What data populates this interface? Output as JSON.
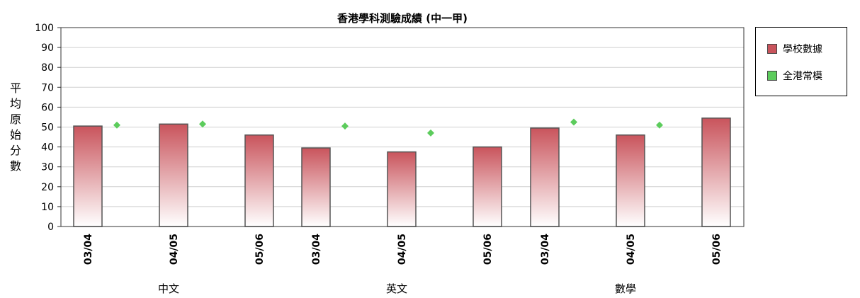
{
  "chart_data": {
    "type": "bar",
    "title": "香港學科測驗成績 (中一甲)",
    "ylabel": "平均原始分數",
    "xlabel": "",
    "ylim": [
      0,
      100
    ],
    "yticks": [
      0,
      10,
      20,
      30,
      40,
      50,
      60,
      70,
      80,
      90,
      100
    ],
    "grid": true,
    "legend_placement": "right",
    "groups": [
      "中文",
      "英文",
      "數學"
    ],
    "categories": [
      "03/04",
      "04/05",
      "05/06",
      "03/04",
      "04/05",
      "05/06",
      "03/04",
      "04/05",
      "05/06"
    ],
    "category_group": [
      0,
      0,
      0,
      1,
      1,
      1,
      2,
      2,
      2
    ],
    "series": [
      {
        "name": "學校數據",
        "mark": "bar",
        "values": [
          50.5,
          51.5,
          46,
          39.5,
          37.5,
          40,
          49.5,
          46,
          54.5
        ]
      },
      {
        "name": "全港常模",
        "mark": "point",
        "values": [
          51,
          51.5,
          null,
          50.5,
          47,
          null,
          52.5,
          51,
          null
        ]
      }
    ],
    "colors": {
      "bar_top": "#c9545c",
      "bar_bottom": "#ffffff",
      "point": "#5ccc5c"
    }
  }
}
